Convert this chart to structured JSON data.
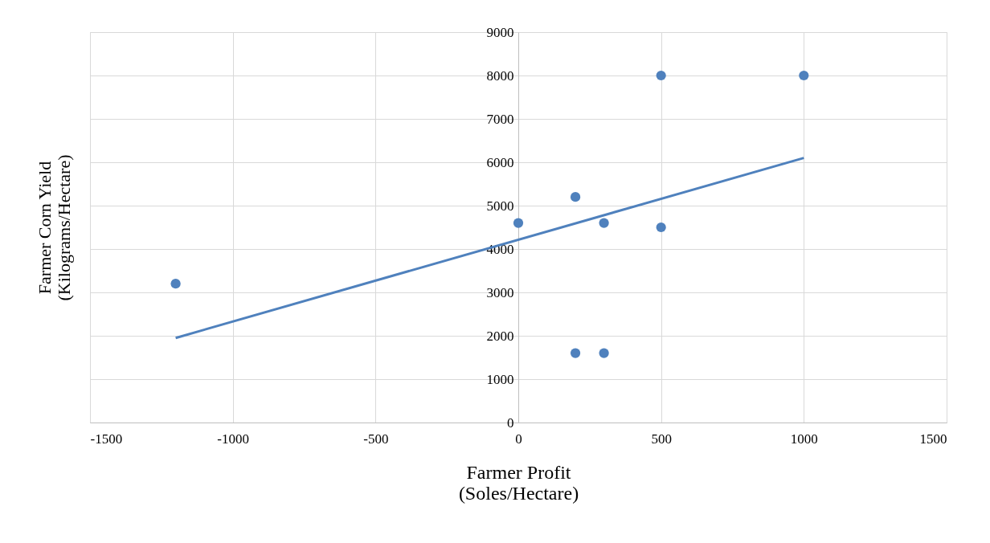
{
  "chart_data": {
    "type": "scatter",
    "xlabel": "Farmer Profit\n(Soles/Hectare)",
    "ylabel": "Farmer Corn Yield\n(Kilograms/Hectare)",
    "series": [
      {
        "marker": "circle",
        "color": "#4f81bd",
        "x": [
          -1200,
          0,
          200,
          200,
          300,
          300,
          500,
          500,
          1000
        ],
        "values": [
          3200,
          4600,
          5200,
          1600,
          4600,
          1600,
          8000,
          4500,
          8000
        ]
      },
      {
        "type": "line",
        "marker": "none",
        "color": "#4f81bd",
        "x": [
          -1200,
          1000
        ],
        "values": [
          1950,
          6100
        ]
      }
    ],
    "xlim": [
      -1500,
      1500
    ],
    "xticks": [
      -1500,
      -1000,
      -500,
      0,
      500,
      1000,
      1500
    ],
    "ylim": [
      0,
      9000
    ],
    "yticks": [
      0,
      1000,
      2000,
      3000,
      4000,
      5000,
      6000,
      7000,
      8000,
      9000
    ],
    "grid": true,
    "line_style": "solid"
  }
}
